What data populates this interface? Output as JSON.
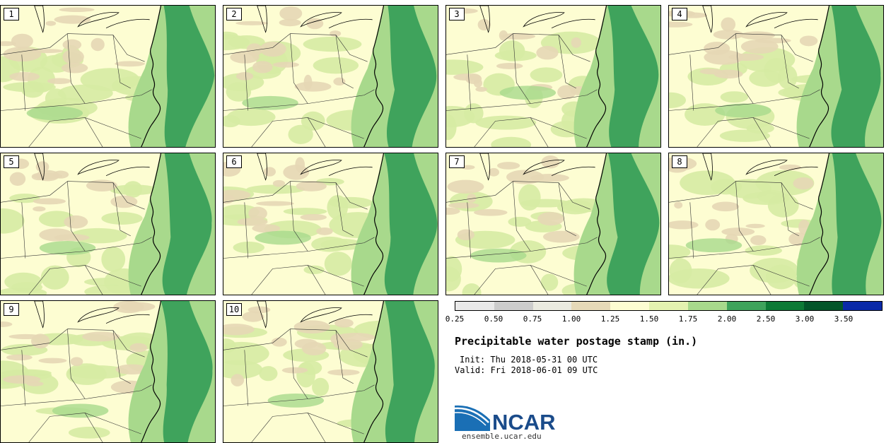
{
  "panels": [
    "1",
    "2",
    "3",
    "4",
    "5",
    "6",
    "7",
    "8",
    "9",
    "10"
  ],
  "colorbar": {
    "ticks": [
      "0.25",
      "0.50",
      "0.75",
      "1.00",
      "1.25",
      "1.50",
      "1.75",
      "2.00",
      "2.50",
      "3.00",
      "3.50"
    ],
    "colors": [
      "#e9e9e9",
      "#cccccc",
      "#eaeae0",
      "#e6d9b8",
      "#fdfdd2",
      "#e4f2b0",
      "#a8d98c",
      "#3fa35c",
      "#0d7a36",
      "#03552a",
      "#0a2aa8"
    ]
  },
  "title": "Precipitable water postage stamp (in.)",
  "init": "Init: Thu 2018-05-31 00 UTC",
  "valid": "Valid: Fri 2018-06-01 09 UTC",
  "logo": {
    "text": "NCAR",
    "url": "ensemble.ucar.edu"
  }
}
